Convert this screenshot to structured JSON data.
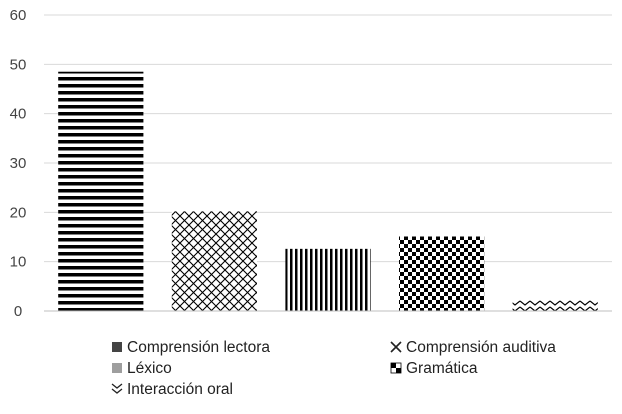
{
  "chart_data": {
    "type": "bar",
    "categories": [
      "Comprensión lectora",
      "Comprensión auditiva",
      "Léxico",
      "Gramática",
      "Interacción oral"
    ],
    "values": [
      48.5,
      20.2,
      12.6,
      15.1,
      2.2
    ],
    "title": "",
    "xlabel": "",
    "ylabel": "",
    "ylim": [
      0,
      60
    ],
    "yticks": [
      0,
      10,
      20,
      30,
      40,
      50,
      60
    ],
    "grid": true,
    "legend_position": "bottom",
    "bar_patterns": [
      "horizontal-stripes",
      "diagonal-cross",
      "vertical-stripes",
      "checkerboard",
      "zigzag"
    ],
    "colors": {
      "bar": "#000000",
      "grid": "#d9d9d9",
      "axis_text": "#444444"
    }
  },
  "legend": {
    "items": [
      {
        "label": "Comprensión lectora",
        "icon": "filled-square"
      },
      {
        "label": "Comprensión auditiva",
        "icon": "cross"
      },
      {
        "label": "Léxico",
        "icon": "gray-square"
      },
      {
        "label": "Gramática",
        "icon": "checker-square"
      },
      {
        "label": "Interacción oral",
        "icon": "chevron-zigzag"
      }
    ]
  }
}
